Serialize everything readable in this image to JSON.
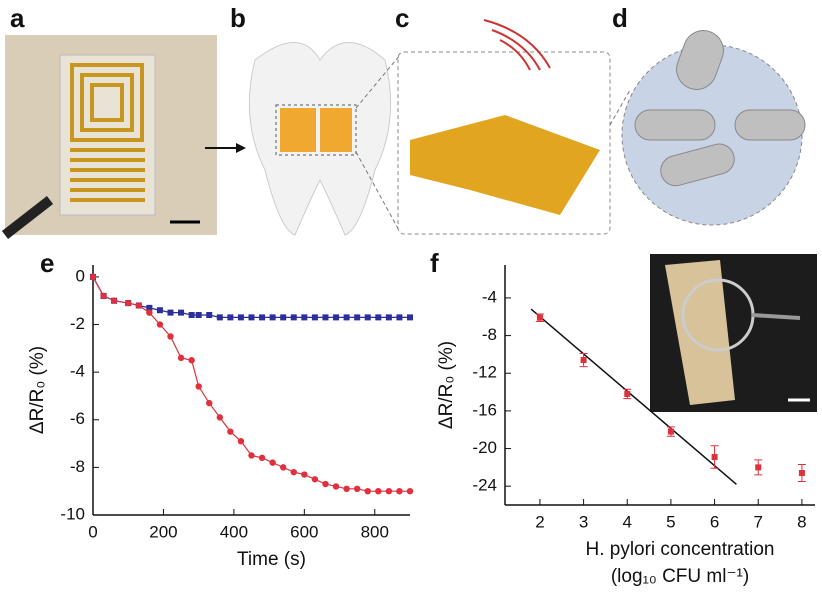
{
  "panel_labels": [
    "a",
    "b",
    "c",
    "d"
  ],
  "chart_data": [
    {
      "type": "line",
      "panel_label": "e",
      "xlabel": "Time (s)",
      "ylabel": "ΔR/R₀ (%)",
      "x": [
        0,
        30,
        60,
        100,
        130,
        160,
        190,
        220,
        250,
        280,
        300,
        330,
        360,
        390,
        420,
        450,
        480,
        510,
        540,
        570,
        600,
        630,
        660,
        690,
        720,
        750,
        780,
        810,
        840,
        870,
        900
      ],
      "series": [
        {
          "color": "#2b2f9a",
          "marker": "square",
          "values": [
            0,
            -0.8,
            -1.0,
            -1.1,
            -1.2,
            -1.3,
            -1.4,
            -1.5,
            -1.5,
            -1.6,
            -1.6,
            -1.6,
            -1.7,
            -1.7,
            -1.7,
            -1.7,
            -1.7,
            -1.7,
            -1.7,
            -1.7,
            -1.7,
            -1.7,
            -1.7,
            -1.7,
            -1.7,
            -1.7,
            -1.7,
            -1.7,
            -1.7,
            -1.7,
            -1.7
          ]
        },
        {
          "color": "#e0303c",
          "marker": "circle",
          "values": [
            0,
            -0.8,
            -1.0,
            -1.1,
            -1.2,
            -1.5,
            -2.0,
            -2.5,
            -3.4,
            -3.5,
            -4.6,
            -5.3,
            -5.9,
            -6.5,
            -6.9,
            -7.5,
            -7.6,
            -7.8,
            -8.0,
            -8.2,
            -8.3,
            -8.5,
            -8.7,
            -8.8,
            -8.9,
            -8.9,
            -9.0,
            -9.0,
            -9.0,
            -9.0,
            -9.0
          ]
        }
      ],
      "xlim": [
        0,
        900
      ],
      "ylim": [
        -10,
        0.5
      ],
      "xticks": [
        0,
        200,
        400,
        600,
        800
      ],
      "yticks": [
        0,
        -2,
        -4,
        -6,
        -8,
        -10
      ]
    },
    {
      "type": "scatter",
      "panel_label": "f",
      "xlabel": "H. pylori concentration",
      "xlabel_line2": "(log₁₀ CFU ml⁻¹)",
      "ylabel": "ΔR/R₀ (%)",
      "x": [
        2,
        3,
        4,
        5,
        6,
        7,
        8
      ],
      "series": [
        {
          "color": "#e0303c",
          "marker": "square",
          "values": [
            -6.1,
            -10.6,
            -14.2,
            -18.2,
            -20.9,
            -22.0,
            -22.6
          ],
          "errors": [
            0.4,
            0.7,
            0.5,
            0.5,
            1.2,
            0.8,
            0.9
          ]
        }
      ],
      "fit_line": {
        "color": "#111111",
        "x": [
          1.8,
          6.5
        ],
        "y": [
          -5.2,
          -23.8
        ]
      },
      "xlim": [
        1.2,
        8.3
      ],
      "ylim": [
        -26,
        -0.5
      ],
      "xticks": [
        2,
        3,
        4,
        5,
        6,
        7,
        8
      ],
      "yticks": [
        -4,
        -8,
        -12,
        -16,
        -20,
        -24
      ]
    }
  ]
}
